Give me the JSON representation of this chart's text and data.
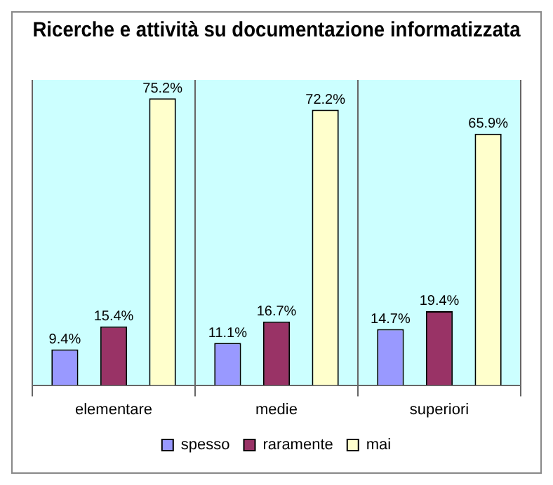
{
  "chart_data": {
    "type": "bar",
    "title": "Ricerche e attività su documentazione informatizzata",
    "categories": [
      "elementare",
      "medie",
      "superiori"
    ],
    "series": [
      {
        "name": "spesso",
        "color": "#9999ff",
        "values": [
          9.4,
          11.1,
          14.7
        ],
        "value_labels": [
          "9.4%",
          "11.1%",
          "14.7%"
        ]
      },
      {
        "name": "raramente",
        "color": "#993366",
        "values": [
          15.4,
          16.7,
          19.4
        ],
        "value_labels": [
          "15.4%",
          "16.7%",
          "19.4%"
        ]
      },
      {
        "name": "mai",
        "color": "#ffffcc",
        "values": [
          75.2,
          72.2,
          65.9
        ],
        "value_labels": [
          "75.2%",
          "72.2%",
          "65.9%"
        ]
      }
    ],
    "grid": "x",
    "legend": "bottom"
  }
}
